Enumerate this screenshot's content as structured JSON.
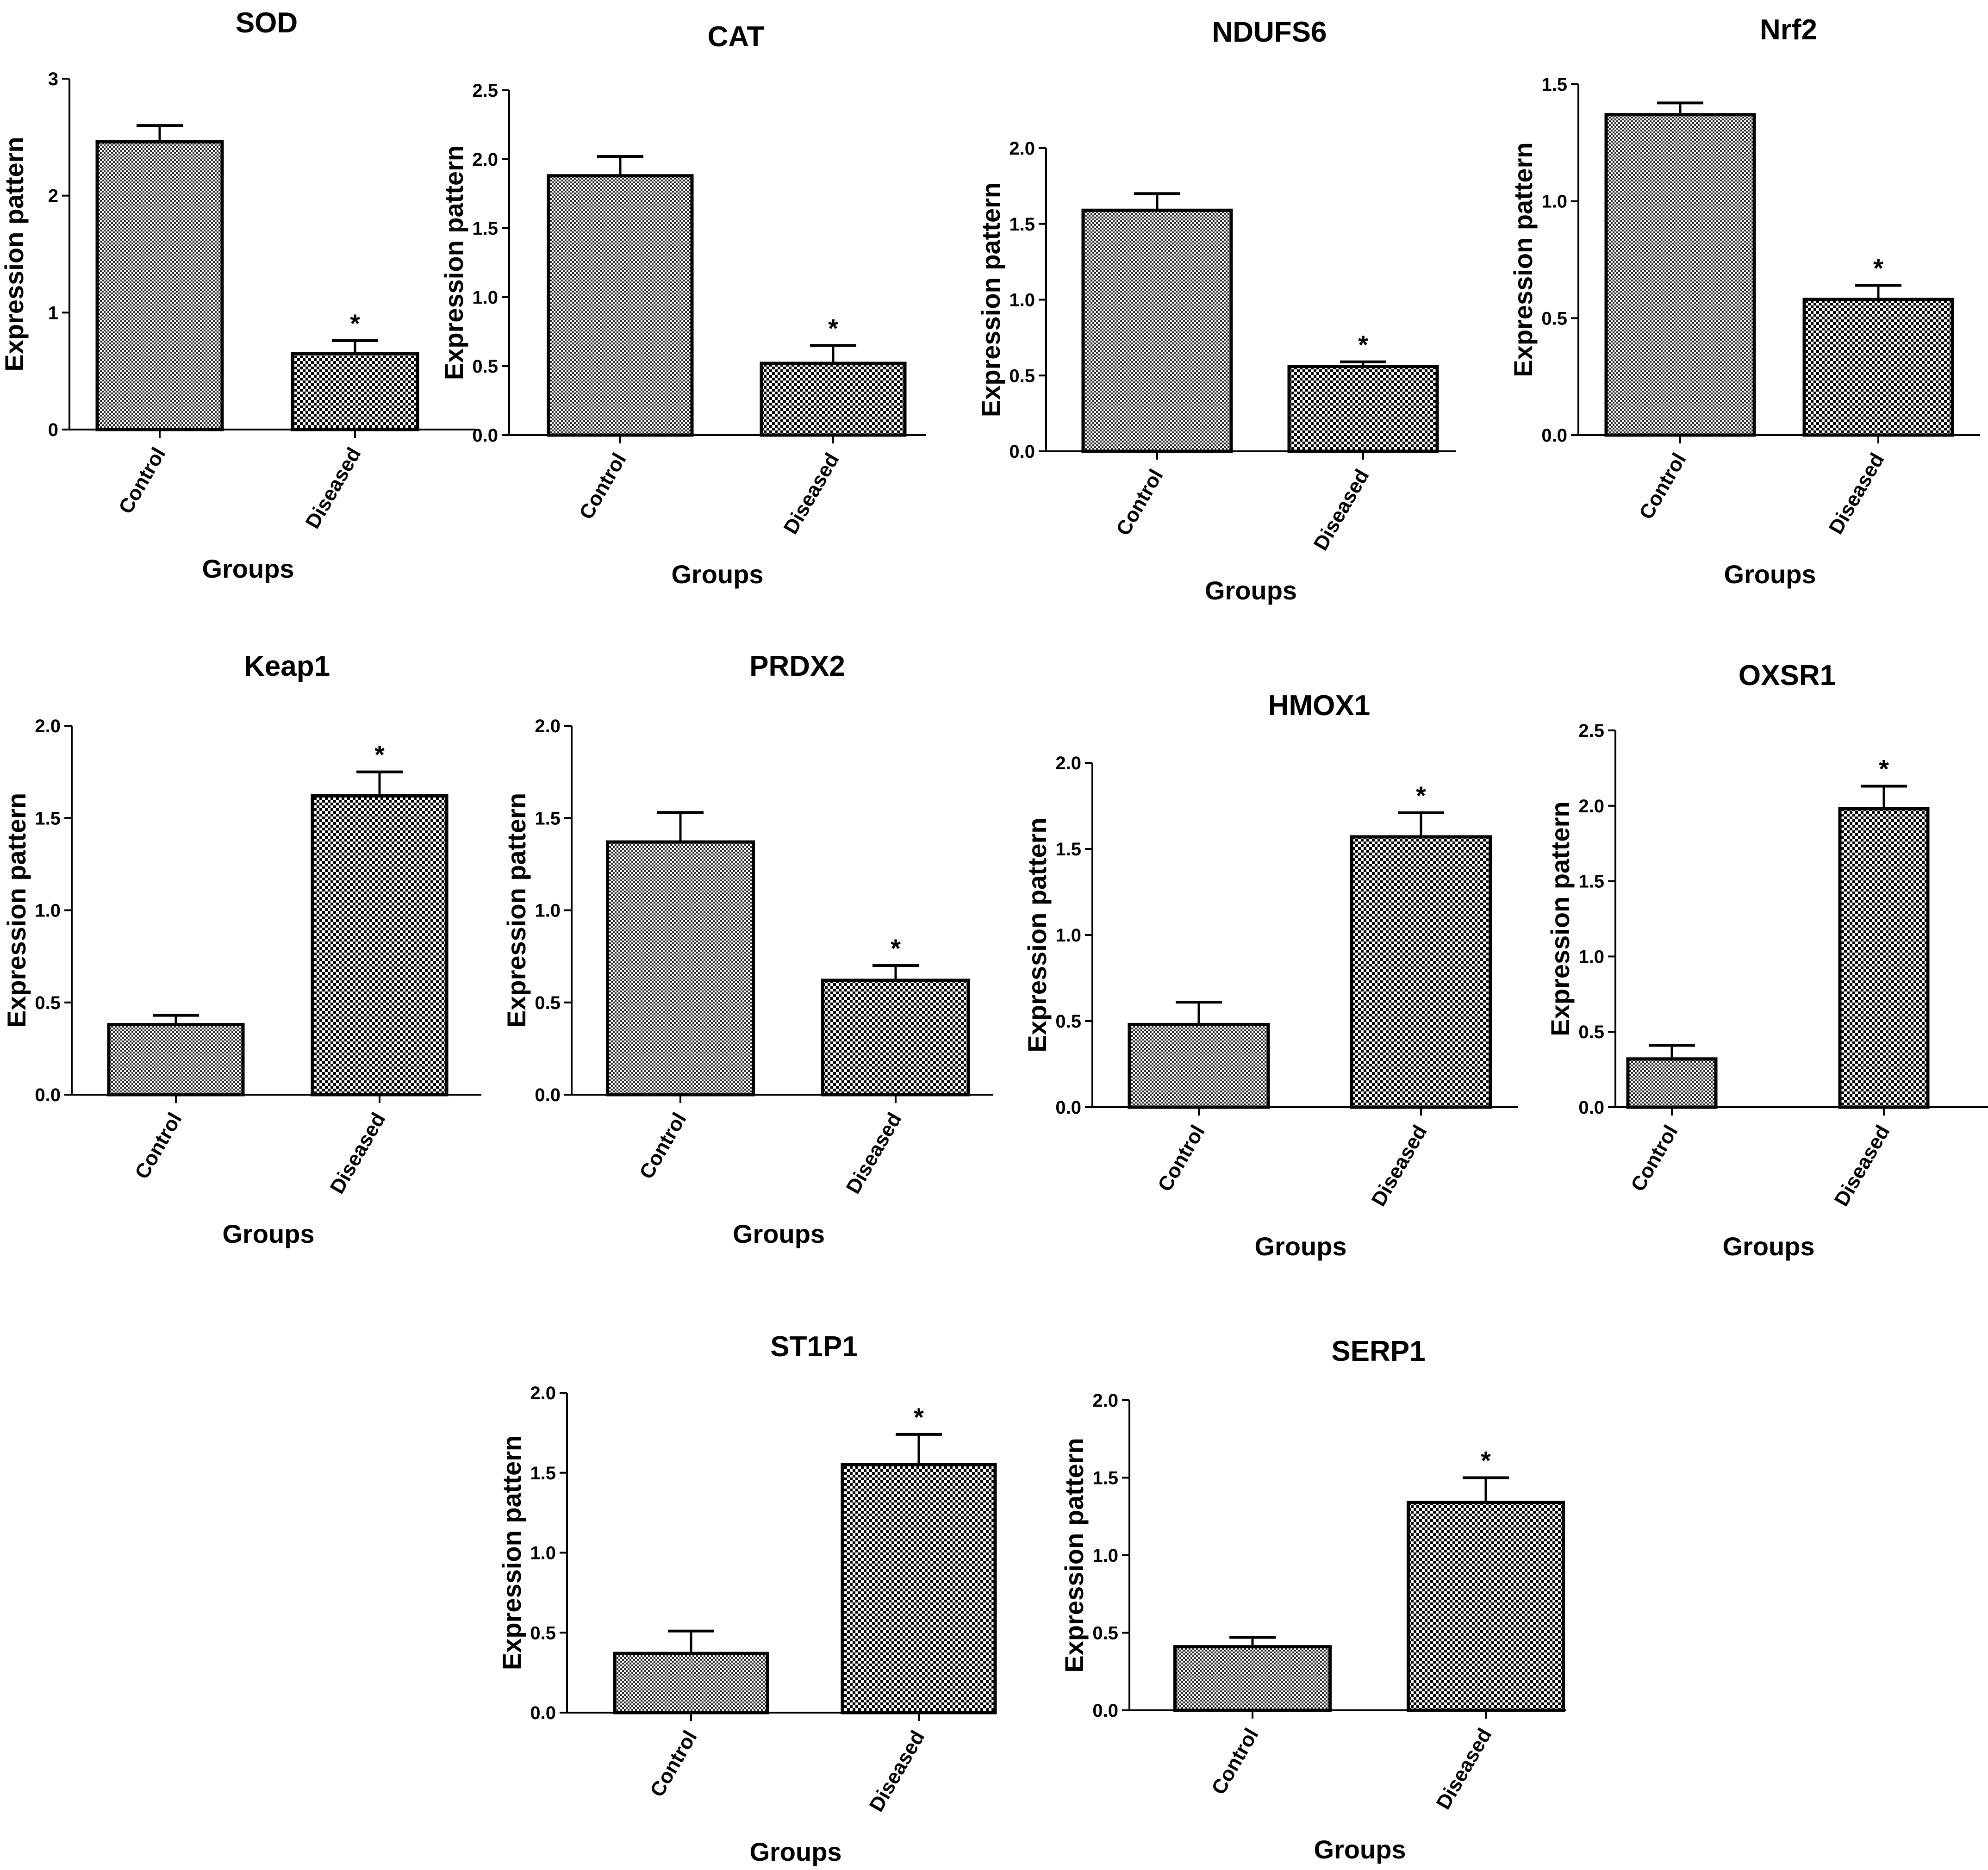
{
  "figure": {
    "description_free": true
  },
  "chart_data": [
    {
      "type": "bar",
      "title": "SOD",
      "xlabel": "Groups",
      "ylabel": "Expression pattern",
      "categories": [
        "Control",
        "Diseased"
      ],
      "values": [
        2.46,
        0.65
      ],
      "errors": [
        0.14,
        0.11
      ],
      "significance": [
        "",
        "*"
      ],
      "ylim": [
        0,
        3
      ],
      "yticks": [
        "0",
        "1",
        "2",
        "3"
      ],
      "grid": false
    },
    {
      "type": "bar",
      "title": "CAT",
      "xlabel": "Groups",
      "ylabel": "Expression pattern",
      "categories": [
        "Control",
        "Diseased"
      ],
      "values": [
        1.88,
        0.52
      ],
      "errors": [
        0.14,
        0.13
      ],
      "significance": [
        "",
        "*"
      ],
      "ylim": [
        0,
        2.5
      ],
      "yticks": [
        "0.0",
        "0.5",
        "1.0",
        "1.5",
        "2.0",
        "2.5"
      ],
      "grid": false
    },
    {
      "type": "bar",
      "title": "NDUFS6",
      "xlabel": "Groups",
      "ylabel": "Expression pattern",
      "categories": [
        "Control",
        "Diseased"
      ],
      "values": [
        1.59,
        0.56
      ],
      "errors": [
        0.11,
        0.03
      ],
      "significance": [
        "",
        "*"
      ],
      "ylim": [
        0,
        2.0
      ],
      "yticks": [
        "0.0",
        "0.5",
        "1.0",
        "1.5",
        "2.0"
      ],
      "grid": false
    },
    {
      "type": "bar",
      "title": "Nrf2",
      "xlabel": "Groups",
      "ylabel": "Expression pattern",
      "categories": [
        "Control",
        "Diseased"
      ],
      "values": [
        1.37,
        0.58
      ],
      "errors": [
        0.05,
        0.06
      ],
      "significance": [
        "",
        "*"
      ],
      "ylim": [
        0,
        1.5
      ],
      "yticks": [
        "0.0",
        "0.5",
        "1.0",
        "1.5"
      ],
      "grid": false
    },
    {
      "type": "bar",
      "title": "Keap1",
      "xlabel": "Groups",
      "ylabel": "Expression pattern",
      "categories": [
        "Control",
        "Diseased"
      ],
      "values": [
        0.38,
        1.62
      ],
      "errors": [
        0.05,
        0.13
      ],
      "significance": [
        "",
        "*"
      ],
      "ylim": [
        0,
        2.0
      ],
      "yticks": [
        "0.0",
        "0.5",
        "1.0",
        "1.5",
        "2.0"
      ],
      "grid": false
    },
    {
      "type": "bar",
      "title": "PRDX2",
      "xlabel": "Groups",
      "ylabel": "Expression pattern",
      "categories": [
        "Control",
        "Diseased"
      ],
      "values": [
        1.37,
        0.62
      ],
      "errors": [
        0.16,
        0.08
      ],
      "significance": [
        "",
        "*"
      ],
      "ylim": [
        0,
        2.0
      ],
      "yticks": [
        "0.0",
        "0.5",
        "1.0",
        "1.5",
        "2.0"
      ],
      "grid": false
    },
    {
      "type": "bar",
      "title": "HMOX1",
      "xlabel": "Groups",
      "ylabel": "Expression pattern",
      "categories": [
        "Control",
        "Diseased"
      ],
      "values": [
        0.48,
        1.57
      ],
      "errors": [
        0.13,
        0.14
      ],
      "significance": [
        "",
        "*"
      ],
      "ylim": [
        0,
        2.0
      ],
      "yticks": [
        "0.0",
        "0.5",
        "1.0",
        "1.5",
        "2.0"
      ],
      "grid": false
    },
    {
      "type": "bar",
      "title": "OXSR1",
      "xlabel": "Groups",
      "ylabel": "Expression pattern",
      "categories": [
        "Control",
        "Diseased"
      ],
      "values": [
        0.32,
        1.98
      ],
      "errors": [
        0.09,
        0.15
      ],
      "significance": [
        "",
        "*"
      ],
      "ylim": [
        0,
        2.5
      ],
      "yticks": [
        "0.0",
        "0.5",
        "1.0",
        "1.5",
        "2.0",
        "2.5"
      ],
      "grid": false
    },
    {
      "type": "bar",
      "title": "ST1P1",
      "xlabel": "Groups",
      "ylabel": "Expression pattern",
      "categories": [
        "Control",
        "Diseased"
      ],
      "values": [
        0.37,
        1.55
      ],
      "errors": [
        0.14,
        0.19
      ],
      "significance": [
        "",
        "*"
      ],
      "ylim": [
        0,
        2.0
      ],
      "yticks": [
        "0.0",
        "0.5",
        "1.0",
        "1.5",
        "2.0"
      ],
      "grid": false
    },
    {
      "type": "bar",
      "title": "SERP1",
      "xlabel": "Groups",
      "ylabel": "Expression pattern",
      "categories": [
        "Control",
        "Diseased"
      ],
      "values": [
        0.41,
        1.34
      ],
      "errors": [
        0.06,
        0.16
      ],
      "significance": [
        "",
        "*"
      ],
      "ylim": [
        0,
        2.0
      ],
      "yticks": [
        "0.0",
        "0.5",
        "1.0",
        "1.5",
        "2.0"
      ],
      "grid": false
    }
  ]
}
